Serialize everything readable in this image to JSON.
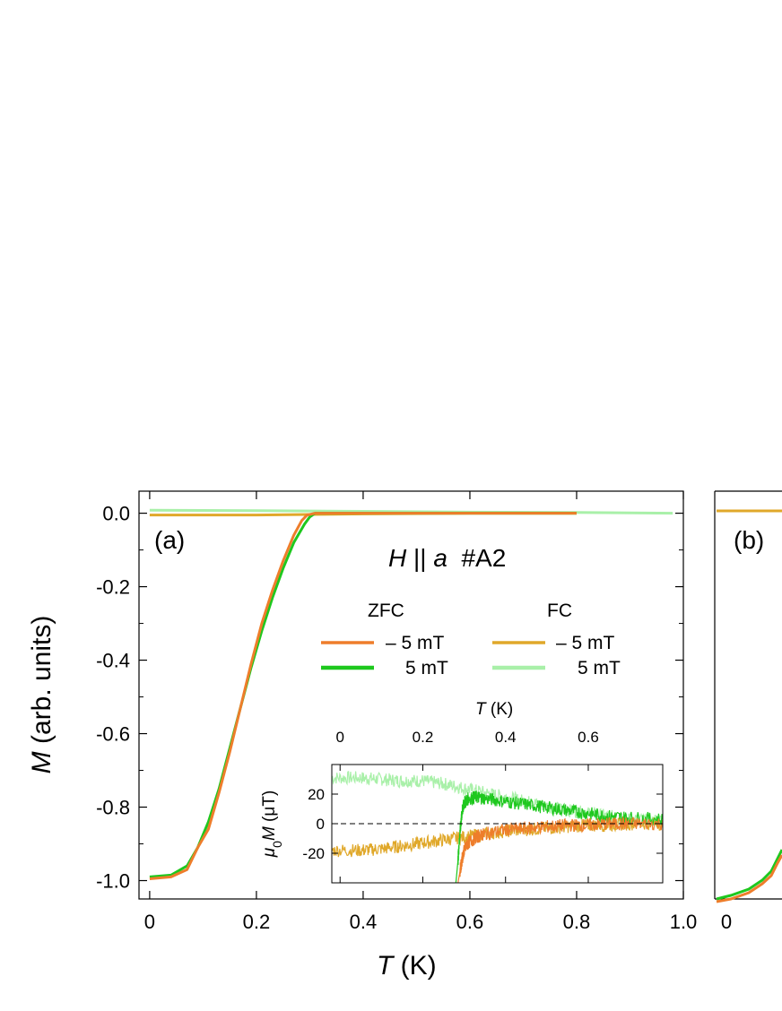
{
  "chart_data": [
    {
      "panel_label": "(a)",
      "type": "line",
      "annotation": [
        "H",
        " || ",
        "a",
        "  #A2"
      ],
      "xlabel": [
        "T",
        " (K)"
      ],
      "ylabel": [
        "M",
        " (arb. units)"
      ],
      "xlim": [
        -0.02,
        1.0
      ],
      "ylim": [
        -1.05,
        0.06
      ],
      "xticks": [
        "0",
        "0.2",
        "0.4",
        "0.6",
        "0.8",
        "1.0"
      ],
      "xtick_values": [
        0,
        0.2,
        0.4,
        0.6,
        0.8,
        1.0
      ],
      "yticks": [
        "0.0",
        "-0.2",
        "-0.4",
        "-0.6",
        "-0.8",
        "-1.0"
      ],
      "ytick_values": [
        0.0,
        -0.2,
        -0.4,
        -0.6,
        -0.8,
        -1.0
      ],
      "legend": {
        "headers": [
          "ZFC",
          "FC"
        ],
        "entries": [
          "– 5 mT",
          "5 mT",
          "– 5 mT",
          "5 mT"
        ]
      },
      "colors": {
        "zfc_minus": "#ee7d2b",
        "zfc_plus": "#1ec81e",
        "fc_minus": "#e0a82a",
        "fc_plus": "#a9f0a9"
      },
      "series": [
        {
          "group": "ZFC",
          "field": "– 5 mT",
          "x": [
            0.0,
            0.04,
            0.07,
            0.09,
            0.11,
            0.13,
            0.15,
            0.17,
            0.19,
            0.21,
            0.23,
            0.25,
            0.27,
            0.285,
            0.295,
            0.31,
            0.4,
            0.5,
            0.6,
            0.7,
            0.8
          ],
          "y": [
            -0.995,
            -0.99,
            -0.97,
            -0.91,
            -0.86,
            -0.76,
            -0.65,
            -0.53,
            -0.41,
            -0.3,
            -0.21,
            -0.13,
            -0.06,
            -0.02,
            -0.005,
            0.0,
            0.0,
            0.0,
            0.0,
            0.0,
            0.0
          ]
        },
        {
          "group": "ZFC",
          "field": "5 mT",
          "x": [
            0.0,
            0.04,
            0.07,
            0.09,
            0.11,
            0.13,
            0.15,
            0.17,
            0.19,
            0.21,
            0.23,
            0.25,
            0.27,
            0.29,
            0.3,
            0.31,
            0.4,
            0.5,
            0.6,
            0.7,
            0.8
          ],
          "y": [
            -0.99,
            -0.985,
            -0.96,
            -0.91,
            -0.84,
            -0.75,
            -0.64,
            -0.53,
            -0.42,
            -0.32,
            -0.23,
            -0.15,
            -0.08,
            -0.03,
            -0.01,
            0.0,
            0.0,
            0.0,
            0.0,
            0.0,
            0.0
          ]
        },
        {
          "group": "FC",
          "field": "– 5 mT",
          "x": [
            0.0,
            0.2,
            0.4,
            0.6,
            0.8
          ],
          "y": [
            -0.005,
            -0.005,
            -0.002,
            0.0,
            0.0
          ]
        },
        {
          "group": "FC",
          "field": "5 mT",
          "x": [
            0.0,
            0.2,
            0.4,
            0.6,
            0.8,
            0.98
          ],
          "y": [
            0.008,
            0.007,
            0.005,
            0.003,
            0.002,
            0.0
          ]
        }
      ]
    },
    {
      "panel_label": "inset",
      "type": "line",
      "xlabel": [
        "T",
        " (K)"
      ],
      "ylabel": [
        "μ",
        "0",
        "M",
        " (μT)"
      ],
      "xlim": [
        -0.02,
        0.78
      ],
      "ylim": [
        -40,
        40
      ],
      "xticks": [
        "0",
        "0.2",
        "0.4",
        "0.6"
      ],
      "xtick_values": [
        0,
        0.2,
        0.4,
        0.6
      ],
      "yticks": [
        "20",
        "0",
        "-20"
      ],
      "ytick_values": [
        20,
        0,
        -20
      ],
      "zero_line": "dashed",
      "series": [
        {
          "group": "FC",
          "field": "5 mT",
          "x": [
            -0.02,
            0.05,
            0.1,
            0.15,
            0.2,
            0.25,
            0.3,
            0.35,
            0.4,
            0.45,
            0.5,
            0.55,
            0.6,
            0.65,
            0.7,
            0.78
          ],
          "y": [
            31,
            31,
            30,
            29,
            29,
            27,
            24,
            21,
            18,
            15,
            12,
            9,
            7,
            5,
            3,
            2
          ]
        },
        {
          "group": "FC",
          "field": "– 5 mT",
          "x": [
            -0.02,
            0.05,
            0.1,
            0.15,
            0.2,
            0.25,
            0.3,
            0.35,
            0.4,
            0.45,
            0.5,
            0.55,
            0.6,
            0.65,
            0.7,
            0.78
          ],
          "y": [
            -18,
            -18,
            -17,
            -15,
            -13,
            -11,
            -9,
            -7,
            -5,
            -4,
            -3,
            -2,
            -1,
            -1,
            0,
            0
          ]
        },
        {
          "group": "ZFC",
          "field": "5 mT",
          "x": [
            0.28,
            0.285,
            0.29,
            0.295,
            0.3,
            0.31,
            0.33,
            0.35,
            0.4,
            0.45,
            0.5,
            0.55,
            0.6,
            0.65,
            0.7,
            0.78
          ],
          "y": [
            -40,
            -25,
            -5,
            8,
            14,
            17,
            18,
            17,
            15,
            13,
            11,
            9,
            7,
            5,
            4,
            3
          ]
        },
        {
          "group": "ZFC",
          "field": "– 5 mT",
          "x": [
            0.285,
            0.29,
            0.295,
            0.3,
            0.31,
            0.33,
            0.35,
            0.4,
            0.45,
            0.5,
            0.55,
            0.6,
            0.65,
            0.7,
            0.78
          ],
          "y": [
            -40,
            -32,
            -24,
            -18,
            -13,
            -9,
            -7,
            -4,
            -3,
            -2,
            -1,
            -1,
            0,
            0,
            0
          ]
        }
      ]
    },
    {
      "panel_label": "(b)",
      "type": "line",
      "xticks": [
        "0"
      ],
      "xtick_values": [
        0
      ]
    }
  ]
}
